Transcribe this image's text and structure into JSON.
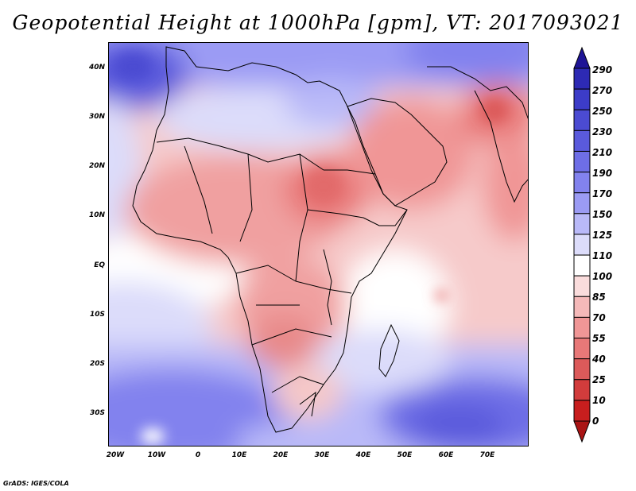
{
  "title": "Geopotential Height at 1000hPa [gpm], VT: 2017093021",
  "credit": "GrADS: IGES/COLA",
  "map": {
    "lat_labels": [
      "40N",
      "30N",
      "20N",
      "10N",
      "EQ",
      "10S",
      "20S",
      "30S"
    ],
    "lon_labels": [
      "20W",
      "10W",
      "0",
      "10E",
      "20E",
      "30E",
      "40E",
      "50E",
      "60E",
      "70E"
    ]
  },
  "colorbar": {
    "labels": [
      "290",
      "270",
      "250",
      "230",
      "210",
      "190",
      "170",
      "150",
      "125",
      "110",
      "100",
      "85",
      "70",
      "55",
      "40",
      "25",
      "10",
      "0"
    ],
    "colors": [
      "#1e1496",
      "#2d2ab4",
      "#3c3cc8",
      "#4b4bd2",
      "#5a5adc",
      "#6e6ee6",
      "#8282ee",
      "#9b9bf4",
      "#b9b9f8",
      "#dcdcfa",
      "#ffffff",
      "#fadcdc",
      "#f5b9b9",
      "#f09696",
      "#e87878",
      "#dc5a5a",
      "#d23c3c",
      "#c81e1e",
      "#aa1414"
    ]
  }
}
